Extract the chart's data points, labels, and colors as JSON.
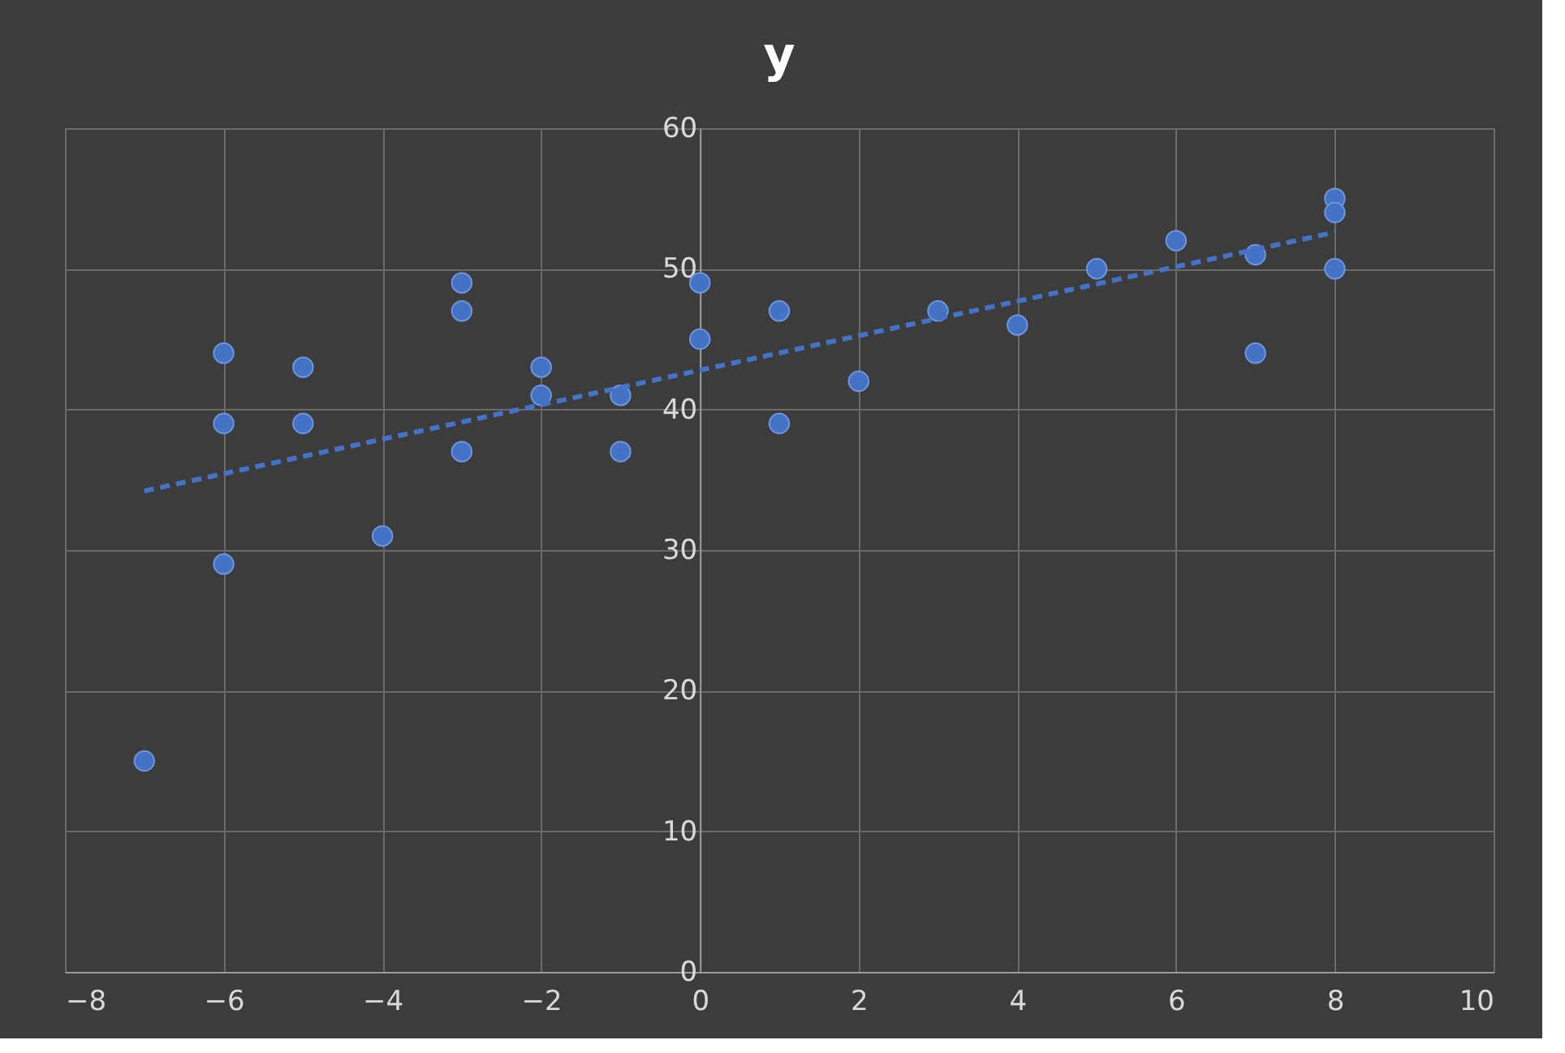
{
  "chart_data": {
    "type": "scatter",
    "title": "y",
    "marker": "circle",
    "grid": true,
    "xlim": [
      -8,
      10
    ],
    "xticks": [
      -8,
      -6,
      -4,
      -2,
      0,
      2,
      4,
      6,
      8,
      10
    ],
    "ylim": [
      0,
      60
    ],
    "yticks": [
      0,
      10,
      20,
      30,
      40,
      50,
      60
    ],
    "x": [
      -7,
      -6,
      -6,
      -6,
      -5,
      -5,
      -4,
      -3,
      -3,
      -3,
      -2,
      -2,
      -1,
      -1,
      0,
      0,
      1,
      1,
      2,
      3,
      4,
      5,
      6,
      7,
      7,
      8,
      8,
      8
    ],
    "series": [
      {
        "color": "#4472c4",
        "values": [
          15,
          44,
          39,
          29,
          43,
          39,
          31,
          49,
          47,
          37,
          43,
          41,
          41,
          37,
          49,
          45,
          47,
          39,
          42,
          47,
          46,
          50,
          52,
          51,
          44,
          55,
          54,
          50
        ]
      },
      {
        "type": "line",
        "x": [
          -7,
          8
        ],
        "values": [
          34.2,
          52.6
        ],
        "color": "#4472c4",
        "line_style": "dashed",
        "marker": "none"
      }
    ]
  }
}
